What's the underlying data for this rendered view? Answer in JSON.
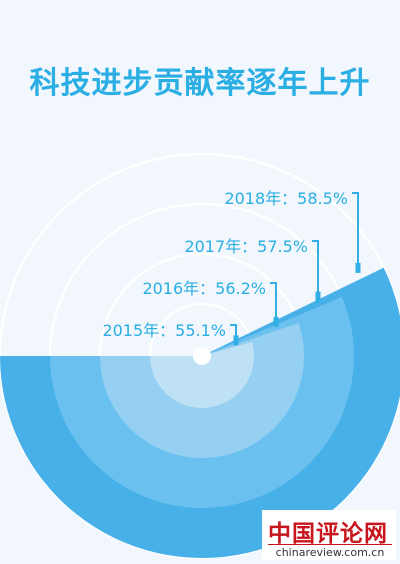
{
  "chart_data": {
    "type": "radial-bar",
    "title": "科技进步贡献率逐年上升",
    "unit": "%",
    "points": [
      {
        "label": "2015年：55.1%",
        "value": 55.1
      },
      {
        "label": "2016年：56.2%",
        "value": 56.2
      },
      {
        "label": "2017年：57.5%",
        "value": 57.5
      },
      {
        "label": "2018年：58.5%",
        "value": 58.5
      }
    ],
    "colors": {
      "title": "#2aaee4",
      "rings": [
        "#bfe1f5",
        "#95d0f2",
        "#6ac0ee",
        "#48b0e8"
      ],
      "guides": "#ffffff",
      "leader": "#32b0e6",
      "labels": "#2aaee4"
    }
  },
  "watermark": {
    "main": "中国评论网",
    "sub": "chinareview.com.cn"
  }
}
